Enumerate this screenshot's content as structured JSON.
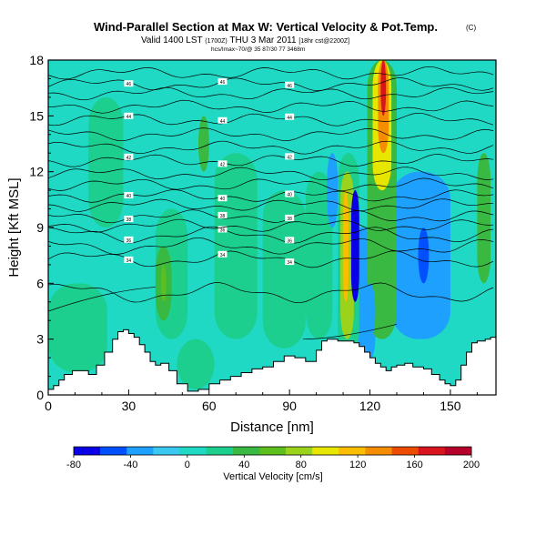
{
  "header": {
    "title": "Wind-Parallel Section at Max W: Vertical Velocity & Pot.Temp.",
    "copyright": "(C)",
    "valid_line": "Valid 1400 LST",
    "valid_sub": "(1700Z)",
    "valid_day": "THU 3 Mar 2011",
    "valid_fcst": "[18hr cst@2200Z]",
    "info_line": "hcs/Imax~70/@ 35 87/30 77 3468m"
  },
  "chart_data": {
    "type": "heatmap",
    "xlabel": "Distance [nm]",
    "ylabel": "Height [Kft MSL]",
    "xlim": [
      0,
      167
    ],
    "ylim": [
      0,
      18
    ],
    "x_ticks": [
      0,
      30,
      60,
      90,
      120,
      150
    ],
    "y_ticks": [
      0,
      3,
      6,
      9,
      12,
      15,
      18
    ],
    "grid": false,
    "colorbar": {
      "label": "Vertical Velocity [cm/s]",
      "tick_labels": [
        "-80",
        "-40",
        "0",
        "40",
        "80",
        "120",
        "160",
        "200"
      ],
      "levels": [
        -80,
        -60,
        -40,
        -20,
        0,
        20,
        40,
        60,
        80,
        100,
        120,
        140,
        160,
        180,
        200
      ],
      "colors": [
        "#0a00e6",
        "#0050ff",
        "#1ea0ff",
        "#39c9f0",
        "#20d9c5",
        "#1dcf8f",
        "#39b942",
        "#5cbf1e",
        "#9bd21c",
        "#e6e600",
        "#fbbd00",
        "#f58d00",
        "#ec4b00",
        "#d8141e",
        "#b4002a"
      ]
    },
    "terrain": {
      "x": [
        0,
        2,
        4,
        6,
        9,
        12,
        15,
        18,
        21,
        24,
        26,
        28,
        30,
        32,
        34,
        36,
        38,
        40,
        42,
        45,
        48,
        52,
        56,
        60,
        64,
        68,
        72,
        76,
        80,
        84,
        88,
        92,
        96,
        100,
        102,
        104,
        106,
        108,
        110,
        112,
        114,
        116,
        118,
        120,
        122,
        124,
        126,
        128,
        130,
        133,
        136,
        140,
        143,
        146,
        148,
        150,
        152,
        154,
        156,
        158,
        160,
        163,
        165,
        167
      ],
      "y": [
        0.3,
        0.5,
        0.8,
        1.1,
        1.3,
        1.3,
        1.1,
        1.6,
        2.3,
        3.0,
        3.4,
        3.5,
        3.3,
        3.1,
        2.7,
        2.3,
        1.8,
        1.6,
        1.7,
        1.3,
        0.6,
        0.2,
        0.3,
        0.6,
        0.8,
        1.0,
        1.2,
        1.4,
        1.5,
        1.8,
        2.1,
        2.0,
        1.8,
        2.4,
        2.9,
        3.0,
        3.0,
        2.9,
        2.9,
        2.9,
        2.8,
        2.6,
        2.3,
        2.0,
        1.7,
        1.5,
        1.3,
        1.5,
        1.6,
        1.7,
        1.5,
        1.4,
        1.1,
        0.8,
        0.6,
        0.5,
        0.8,
        1.6,
        2.3,
        2.8,
        2.9,
        3.0,
        3.1,
        3.0
      ]
    },
    "theta_contours": [
      {
        "label": "34",
        "base": 7.3,
        "amp": 0.3
      },
      {
        "label": "36",
        "base": 8.6,
        "amp": 0.3
      },
      {
        "label": "38",
        "base": 9.6,
        "amp": 0.2
      },
      {
        "label": "40",
        "base": 10.7,
        "amp": 0.2
      },
      {
        "label": "42",
        "base": 12.6,
        "amp": 0.2
      },
      {
        "label": "44",
        "base": 14.8,
        "amp": 0.2
      },
      {
        "label": "46",
        "base": 16.7,
        "amp": 0.2
      },
      {
        "label": "",
        "base": 5.5,
        "amp": 0.4
      },
      {
        "label": "",
        "base": 8.0,
        "amp": 0.3
      },
      {
        "label": "",
        "base": 9.1,
        "amp": 0.2
      },
      {
        "label": "",
        "base": 10.2,
        "amp": 0.2
      },
      {
        "label": "",
        "base": 11.3,
        "amp": 0.2
      },
      {
        "label": "",
        "base": 11.9,
        "amp": 0.2
      },
      {
        "label": "",
        "base": 13.3,
        "amp": 0.2
      },
      {
        "label": "",
        "base": 14.0,
        "amp": 0.2
      },
      {
        "label": "",
        "base": 15.5,
        "amp": 0.2
      },
      {
        "label": "",
        "base": 16.2,
        "amp": 0.2
      },
      {
        "label": "",
        "base": 17.3,
        "amp": 0.2
      }
    ],
    "features": [
      {
        "value": 10,
        "x": [
          0,
          167
        ],
        "y": [
          0,
          18
        ],
        "note": "background"
      },
      {
        "value": 30,
        "x": [
          15,
          28
        ],
        "y": [
          9,
          16
        ],
        "note": ""
      },
      {
        "value": 30,
        "x": [
          40,
          52
        ],
        "y": [
          3,
          10
        ],
        "note": ""
      },
      {
        "value": 30,
        "x": [
          62,
          78
        ],
        "y": [
          3,
          13
        ],
        "note": ""
      },
      {
        "value": 30,
        "x": [
          80,
          96
        ],
        "y": [
          2.5,
          11
        ],
        "note": ""
      },
      {
        "value": 30,
        "x": [
          96,
          106
        ],
        "y": [
          3,
          12
        ],
        "note": ""
      },
      {
        "value": 30,
        "x": [
          0,
          22
        ],
        "y": [
          1.2,
          6
        ],
        "note": ""
      },
      {
        "value": 30,
        "x": [
          48,
          62
        ],
        "y": [
          0.3,
          3
        ],
        "note": ""
      },
      {
        "value": 50,
        "x": [
          40,
          46
        ],
        "y": [
          4,
          8
        ],
        "note": ""
      },
      {
        "value": 50,
        "x": [
          56,
          60
        ],
        "y": [
          12,
          15
        ],
        "note": ""
      },
      {
        "value": 70,
        "x": [
          42,
          44
        ],
        "y": [
          5,
          7
        ],
        "note": ""
      },
      {
        "value": 50,
        "x": [
          160,
          165
        ],
        "y": [
          6,
          13
        ],
        "note": ""
      },
      {
        "value": -30,
        "x": [
          104,
          108
        ],
        "y": [
          9,
          13
        ],
        "note": ""
      },
      {
        "value": -30,
        "x": [
          112,
          122
        ],
        "y": [
          1.5,
          9
        ],
        "note": ""
      },
      {
        "value": -30,
        "x": [
          128,
          150
        ],
        "y": [
          3,
          12
        ],
        "note": ""
      },
      {
        "value": -50,
        "x": [
          138,
          142
        ],
        "y": [
          6,
          9
        ],
        "note": ""
      },
      {
        "value": 30,
        "x": [
          108,
          116
        ],
        "y": [
          2,
          13
        ],
        "note": ""
      },
      {
        "value": 90,
        "x": [
          109,
          114
        ],
        "y": [
          3,
          12
        ],
        "note": ""
      },
      {
        "value": 130,
        "x": [
          110,
          112
        ],
        "y": [
          5,
          11
        ],
        "note": ""
      },
      {
        "value": -70,
        "x": [
          113,
          116
        ],
        "y": [
          5,
          11
        ],
        "note": ""
      },
      {
        "value": 50,
        "x": [
          119,
          130
        ],
        "y": [
          3,
          18
        ],
        "note": ""
      },
      {
        "value": 110,
        "x": [
          121,
          128
        ],
        "y": [
          11,
          18
        ],
        "note": ""
      },
      {
        "value": 150,
        "x": [
          123,
          127
        ],
        "y": [
          13,
          18
        ],
        "note": ""
      },
      {
        "value": 190,
        "x": [
          124,
          126
        ],
        "y": [
          15,
          18
        ],
        "note": ""
      },
      {
        "value": -30,
        "x": [
          118,
          122
        ],
        "y": [
          3,
          6
        ],
        "note": ""
      }
    ]
  }
}
